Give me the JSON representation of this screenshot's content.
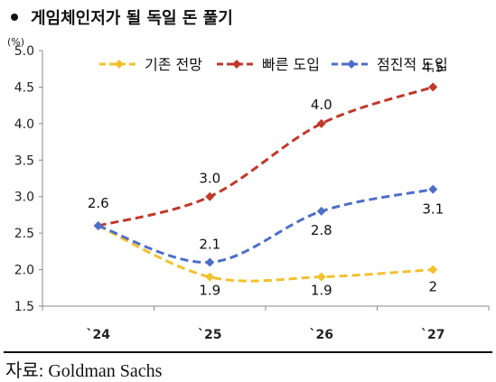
{
  "title": "게임체인저가 될 독일 돈 풀기",
  "source": "자료: Goldman Sachs",
  "chart_data": {
    "type": "line",
    "unit": "(%)",
    "categories": [
      "`24",
      "`25",
      "`26",
      "`27"
    ],
    "ylim": [
      1.5,
      5.0
    ],
    "yticks": [
      "1.5",
      "2.0",
      "2.5",
      "3.0",
      "3.5",
      "4.0",
      "4.5",
      "5.0"
    ],
    "legend_position": "top",
    "series": [
      {
        "name": "기존 전망",
        "values": [
          2.6,
          1.9,
          1.9,
          2.0
        ],
        "labels": [
          "",
          "1.9",
          "1.9",
          "2"
        ],
        "color": "#f2c12e",
        "marker": "diamond"
      },
      {
        "name": "빠른 도입",
        "values": [
          2.6,
          3.0,
          4.0,
          4.5
        ],
        "labels": [
          "2.6",
          "3.0",
          "4.0",
          "4.5"
        ],
        "color": "#c0392b",
        "marker": "diamond"
      },
      {
        "name": "점진적 도입",
        "values": [
          2.6,
          2.1,
          2.8,
          3.1
        ],
        "labels": [
          "",
          "2.1",
          "2.8",
          "3.1"
        ],
        "color": "#4e6fc7",
        "marker": "diamond"
      }
    ]
  }
}
